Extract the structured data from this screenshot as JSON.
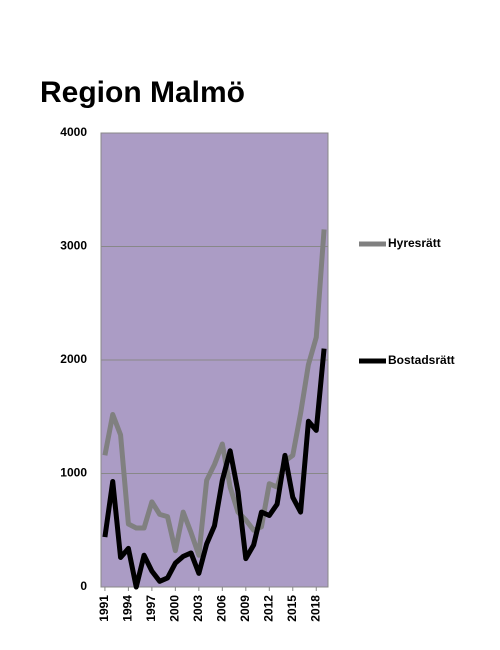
{
  "chart_data": {
    "type": "line",
    "title": "Region Malmö",
    "x": [
      1991,
      1992,
      1993,
      1994,
      1995,
      1996,
      1997,
      1998,
      1999,
      2000,
      2001,
      2002,
      2003,
      2004,
      2005,
      2006,
      2007,
      2008,
      2009,
      2010,
      2011,
      2012,
      2013,
      2014,
      2015,
      2016,
      2017,
      2018,
      2019
    ],
    "xlim": [
      1990.5,
      2019.5
    ],
    "xticks": [
      1991,
      1994,
      1997,
      2000,
      2003,
      2006,
      2009,
      2012,
      2015,
      2018
    ],
    "ylim": [
      0,
      4000
    ],
    "yticks": [
      0,
      1000,
      2000,
      3000,
      4000
    ],
    "grid": true,
    "plot_background": "#ab9cc5",
    "series": [
      {
        "name": "Hyresrätt",
        "color": "#808080",
        "values": [
          1160,
          1520,
          1340,
          555,
          520,
          520,
          750,
          640,
          620,
          320,
          660,
          480,
          280,
          940,
          1080,
          1260,
          880,
          660,
          590,
          500,
          530,
          910,
          880,
          1110,
          1160,
          1530,
          1960,
          2200,
          3150
        ]
      },
      {
        "name": "Bostadsrätt",
        "color": "#000000",
        "values": [
          440,
          930,
          260,
          340,
          0,
          280,
          140,
          50,
          80,
          210,
          270,
          300,
          120,
          380,
          540,
          940,
          1200,
          840,
          250,
          370,
          660,
          630,
          730,
          1160,
          790,
          660,
          1460,
          1380,
          2100
        ]
      }
    ]
  }
}
